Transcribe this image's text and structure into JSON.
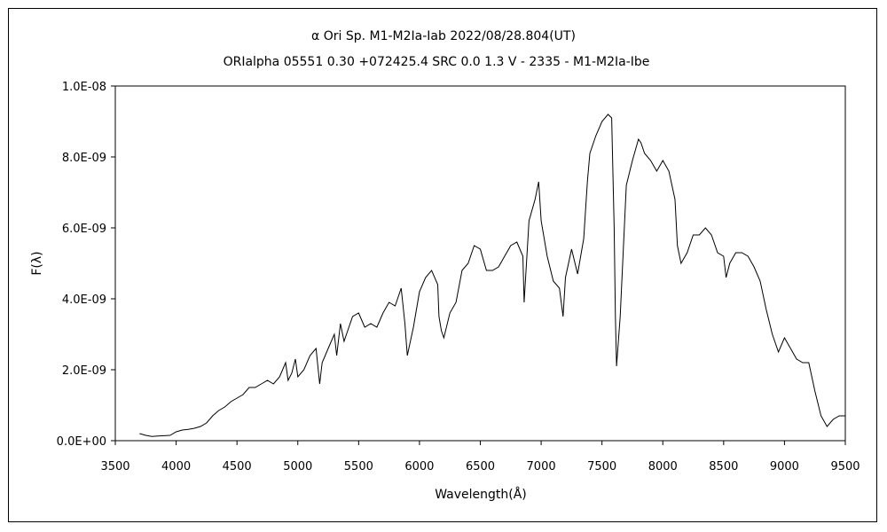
{
  "chart_data": {
    "type": "line",
    "title": "α Ori     Sp. M1-M2Ia-Iab    2022/08/28.804(UT)",
    "subtitle": "ORIalpha 05551 0.30 +072425.4 SRC 0.0 1.3 V - 2335 - M1-M2Ia-Ibe",
    "xlabel": "Wavelength(Å)",
    "ylabel": "F(λ)",
    "xlim": [
      3500,
      9500
    ],
    "ylim": [
      0,
      1e-08
    ],
    "grid": false,
    "x_ticks": [
      3500,
      4000,
      4500,
      5000,
      5500,
      6000,
      6500,
      7000,
      7500,
      8000,
      8500,
      9000,
      9500
    ],
    "x_tick_labels": [
      "3500",
      "4000",
      "4500",
      "5000",
      "5500",
      "6000",
      "6500",
      "7000",
      "7500",
      "8000",
      "8500",
      "9000",
      "9500"
    ],
    "y_ticks": [
      0,
      2e-09,
      4e-09,
      6e-09,
      8e-09,
      1e-08
    ],
    "y_tick_labels": [
      "0.0E+00",
      "2.0E-09",
      "4.0E-09",
      "6.0E-09",
      "8.0E-09",
      "1.0E-08"
    ],
    "series": [
      {
        "color": "#000000",
        "x": [
          3700,
          3750,
          3800,
          3850,
          3900,
          3950,
          4000,
          4050,
          4100,
          4150,
          4200,
          4250,
          4300,
          4350,
          4400,
          4450,
          4500,
          4550,
          4600,
          4650,
          4700,
          4750,
          4800,
          4850,
          4900,
          4920,
          4950,
          4980,
          5000,
          5050,
          5100,
          5150,
          5180,
          5200,
          5250,
          5300,
          5320,
          5350,
          5380,
          5400,
          5450,
          5500,
          5550,
          5600,
          5650,
          5700,
          5750,
          5800,
          5850,
          5880,
          5900,
          5950,
          6000,
          6050,
          6100,
          6150,
          6160,
          6180,
          6200,
          6250,
          6300,
          6350,
          6400,
          6450,
          6500,
          6550,
          6600,
          6650,
          6700,
          6750,
          6800,
          6850,
          6860,
          6900,
          6950,
          6980,
          7000,
          7050,
          7100,
          7150,
          7180,
          7200,
          7250,
          7300,
          7350,
          7380,
          7400,
          7450,
          7500,
          7550,
          7580,
          7600,
          7610,
          7620,
          7650,
          7700,
          7750,
          7800,
          7820,
          7850,
          7900,
          7950,
          8000,
          8050,
          8100,
          8120,
          8150,
          8200,
          8250,
          8300,
          8350,
          8400,
          8450,
          8500,
          8520,
          8550,
          8600,
          8650,
          8700,
          8750,
          8800,
          8850,
          8900,
          8950,
          9000,
          9050,
          9100,
          9150,
          9200,
          9250,
          9300,
          9350,
          9400,
          9450,
          9500
        ],
        "y": [
          2e-10,
          1.5e-10,
          1.2e-10,
          1.3e-10,
          1.4e-10,
          1.5e-10,
          2.5e-10,
          3e-10,
          3.2e-10,
          3.5e-10,
          4e-10,
          5e-10,
          7e-10,
          8.5e-10,
          9.5e-10,
          1.1e-09,
          1.2e-09,
          1.3e-09,
          1.5e-09,
          1.5e-09,
          1.6e-09,
          1.7e-09,
          1.6e-09,
          1.8e-09,
          2.2e-09,
          1.7e-09,
          1.9e-09,
          2.3e-09,
          1.8e-09,
          2e-09,
          2.4e-09,
          2.6e-09,
          1.6e-09,
          2.2e-09,
          2.6e-09,
          3e-09,
          2.4e-09,
          3.3e-09,
          2.8e-09,
          3e-09,
          3.5e-09,
          3.6e-09,
          3.2e-09,
          3.3e-09,
          3.2e-09,
          3.6e-09,
          3.9e-09,
          3.8e-09,
          4.3e-09,
          3.3e-09,
          2.4e-09,
          3.2e-09,
          4.2e-09,
          4.6e-09,
          4.8e-09,
          4.4e-09,
          3.5e-09,
          3.1e-09,
          2.9e-09,
          3.6e-09,
          3.9e-09,
          4.8e-09,
          5e-09,
          5.5e-09,
          5.4e-09,
          4.8e-09,
          4.8e-09,
          4.9e-09,
          5.2e-09,
          5.5e-09,
          5.6e-09,
          5.2e-09,
          3.9e-09,
          6.2e-09,
          6.8e-09,
          7.3e-09,
          6.2e-09,
          5.2e-09,
          4.5e-09,
          4.3e-09,
          3.5e-09,
          4.6e-09,
          5.4e-09,
          4.7e-09,
          5.7e-09,
          7.3e-09,
          8.1e-09,
          8.6e-09,
          9e-09,
          9.2e-09,
          9.1e-09,
          6e-09,
          3.5e-09,
          2.1e-09,
          3.5e-09,
          7.2e-09,
          7.9e-09,
          8.5e-09,
          8.4e-09,
          8.1e-09,
          7.9e-09,
          7.6e-09,
          7.9e-09,
          7.6e-09,
          6.8e-09,
          5.5e-09,
          5e-09,
          5.3e-09,
          5.8e-09,
          5.8e-09,
          6e-09,
          5.8e-09,
          5.3e-09,
          5.2e-09,
          4.6e-09,
          5e-09,
          5.3e-09,
          5.3e-09,
          5.2e-09,
          4.9e-09,
          4.5e-09,
          3.7e-09,
          3e-09,
          2.5e-09,
          2.9e-09,
          2.6e-09,
          2.3e-09,
          2.2e-09,
          2.2e-09,
          1.4e-09,
          7e-10,
          4e-10,
          6e-10,
          7e-10,
          7e-10
        ]
      }
    ]
  }
}
